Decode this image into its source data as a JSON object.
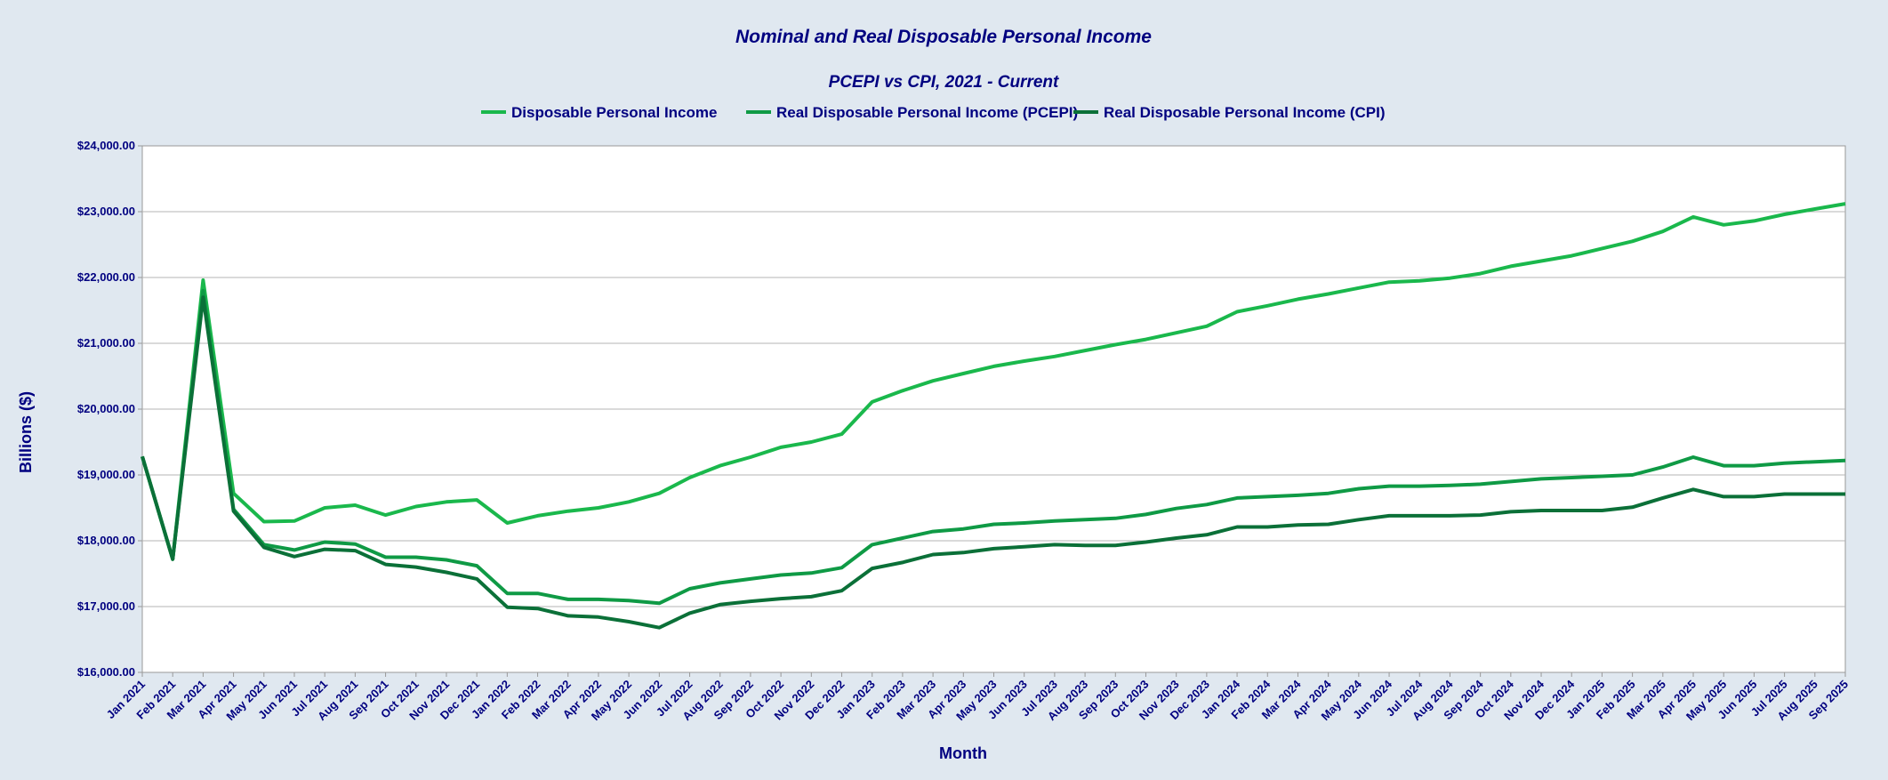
{
  "chart_data": {
    "type": "line",
    "title": "Nominal and Real Disposable Personal Income",
    "subtitle": "PCEPI vs CPI, 2021 - Current",
    "xlabel": "Month",
    "ylabel": "Billions ($)",
    "ylim": [
      16000,
      24000
    ],
    "y_ticks": [
      "$16,000.00",
      "$17,000.00",
      "$18,000.00",
      "$19,000.00",
      "$20,000.00",
      "$21,000.00",
      "$22,000.00",
      "$23,000.00",
      "$24,000.00"
    ],
    "y_tick_values": [
      16000,
      17000,
      18000,
      19000,
      20000,
      21000,
      22000,
      23000,
      24000
    ],
    "grid": true,
    "legend_position": "top",
    "categories": [
      "Jan 2021",
      "Feb 2021",
      "Mar 2021",
      "Apr 2021",
      "May 2021",
      "Jun 2021",
      "Jul 2021",
      "Aug 2021",
      "Sep 2021",
      "Oct 2021",
      "Nov 2021",
      "Dec 2021",
      "Jan 2022",
      "Feb 2022",
      "Mar 2022",
      "Apr 2022",
      "May 2022",
      "Jun 2022",
      "Jul 2022",
      "Aug 2022",
      "Sep 2022",
      "Oct 2022",
      "Nov 2022",
      "Dec 2022",
      "Jan 2023",
      "Feb 2023",
      "Mar 2023",
      "Apr 2023",
      "May 2023",
      "Jun 2023",
      "Jul 2023",
      "Aug 2023",
      "Sep 2023",
      "Oct 2023",
      "Nov 2023",
      "Dec 2023",
      "Jan 2024",
      "Feb 2024",
      "Mar 2024",
      "Apr 2024",
      "May 2024",
      "Jun 2024",
      "Jul 2024",
      "Aug 2024",
      "Sep 2024",
      "Oct 2024",
      "Nov 2024",
      "Dec 2024",
      "Jan 2025",
      "Feb 2025",
      "Mar 2025",
      "Apr 2025",
      "May 2025",
      "Jun 2025",
      "Jul 2025",
      "Aug 2025",
      "Sep 2025"
    ],
    "series": [
      {
        "name": "Disposable Personal Income",
        "color": "#1ab84c",
        "values": [
          19280,
          17720,
          21960,
          18720,
          18290,
          18300,
          18500,
          18540,
          18390,
          18520,
          18590,
          18620,
          18270,
          18380,
          18450,
          18500,
          18590,
          18720,
          18960,
          19140,
          19270,
          19420,
          19500,
          19620,
          20110,
          20280,
          20430,
          20540,
          20650,
          20730,
          20800,
          20890,
          20980,
          21060,
          21160,
          21260,
          21480,
          21570,
          21670,
          21750,
          21840,
          21930,
          21950,
          21990,
          22060,
          22170,
          22250,
          22330,
          22440,
          22550,
          22700,
          22920,
          22800,
          22860,
          22960,
          23040,
          23120
        ]
      },
      {
        "name": "Real Disposable Personal Income (PCEPI)",
        "color": "#0f9a45",
        "values": [
          19280,
          17720,
          21800,
          18480,
          17940,
          17860,
          17980,
          17950,
          17750,
          17750,
          17710,
          17620,
          17200,
          17200,
          17110,
          17110,
          17090,
          17050,
          17270,
          17360,
          17420,
          17480,
          17510,
          17590,
          17940,
          18040,
          18140,
          18180,
          18250,
          18270,
          18300,
          18320,
          18340,
          18400,
          18490,
          18550,
          18650,
          18670,
          18690,
          18720,
          18790,
          18830,
          18830,
          18840,
          18860,
          18900,
          18940,
          18960,
          18980,
          19000,
          19120,
          19270,
          19140,
          19140,
          19180,
          19200,
          19220
        ]
      },
      {
        "name": "Real Disposable Personal Income (CPI)",
        "color": "#0b7038",
        "values": [
          19280,
          17720,
          21700,
          18450,
          17900,
          17760,
          17870,
          17850,
          17640,
          17600,
          17520,
          17420,
          16990,
          16970,
          16860,
          16840,
          16770,
          16680,
          16900,
          17030,
          17080,
          17120,
          17150,
          17240,
          17580,
          17670,
          17790,
          17820,
          17880,
          17910,
          17940,
          17930,
          17930,
          17980,
          18040,
          18090,
          18210,
          18210,
          18240,
          18250,
          18320,
          18380,
          18380,
          18380,
          18390,
          18440,
          18460,
          18460,
          18460,
          18510,
          18650,
          18780,
          18670,
          18670,
          18710,
          18710,
          18710
        ]
      }
    ]
  }
}
